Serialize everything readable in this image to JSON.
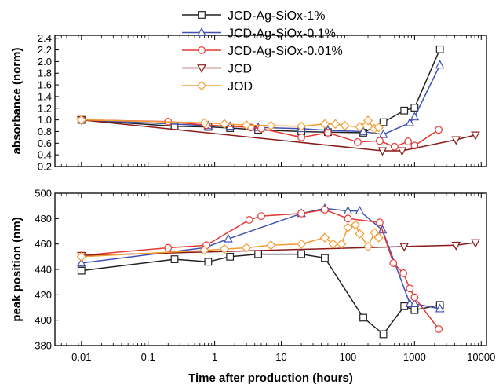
{
  "chart_data": {
    "type": "line",
    "xlabel": "Time after production (hours)",
    "xscale": "log",
    "xlim": [
      0.004,
      12000
    ],
    "xticks": [
      "0.01",
      "0.1",
      "1",
      "10",
      "100",
      "1000",
      "10000"
    ],
    "legend_position": "top-right",
    "series": [
      {
        "name": "JCD-Ag-SiOx-1%",
        "color": "#222222",
        "marker": "square"
      },
      {
        "name": "JCD-Ag-SiOx-0.1%",
        "color": "#3f51b5",
        "marker": "triangle-up"
      },
      {
        "name": "JCD-Ag-SiOx-0.01%",
        "color": "#e53935",
        "marker": "circle"
      },
      {
        "name": "JCD",
        "color": "#8b1a1a",
        "marker": "triangle-down"
      },
      {
        "name": "JOD",
        "color": "#f39c34",
        "marker": "diamond"
      }
    ],
    "panels": [
      {
        "id": "top",
        "ylabel": "absorbance (norm)",
        "ylim": [
          0.2,
          2.45
        ],
        "yticks": [
          0.2,
          0.4,
          0.6,
          0.8,
          1.0,
          1.2,
          1.4,
          1.6,
          1.8,
          2.0,
          2.2,
          2.4
        ],
        "ytick_labels": [
          "0.2",
          "0.4",
          "0.6",
          "0.8",
          "1.0",
          "1.2",
          "1.4",
          "1.6",
          "1.8",
          "2.0",
          "2.2",
          "2.4"
        ],
        "data": [
          {
            "x": [
              0.01,
              0.25,
              0.8,
              1.7,
              4.5,
              20,
              50,
              170,
              340,
              700,
              1000,
              2400
            ],
            "y": [
              1.0,
              0.89,
              0.88,
              0.86,
              0.83,
              0.8,
              0.79,
              0.78,
              0.96,
              1.16,
              1.21,
              2.21
            ]
          },
          {
            "x": [
              0.01,
              0.8,
              1.7,
              4.5,
              20,
              50,
              170,
              340,
              850,
              1000,
              2400
            ],
            "y": [
              1.0,
              0.9,
              0.89,
              0.87,
              0.85,
              0.82,
              0.8,
              0.75,
              0.95,
              1.05,
              1.94
            ]
          },
          {
            "x": [
              0.01,
              0.2,
              0.75,
              3.5,
              5,
              20,
              50,
              140,
              300,
              500,
              800,
              1000,
              2300
            ],
            "y": [
              1.0,
              0.97,
              0.91,
              0.87,
              0.85,
              0.7,
              0.78,
              0.62,
              0.64,
              0.54,
              0.63,
              0.56,
              0.83
            ]
          },
          {
            "x": [
              0.01,
              330,
              650,
              4200,
              8200
            ],
            "y": [
              1.0,
              0.47,
              0.47,
              0.66,
              0.74
            ]
          },
          {
            "x": [
              0.01,
              0.7,
              1.4,
              3,
              7,
              20,
              45,
              65,
              90,
              150,
              200,
              250,
              290
            ],
            "y": [
              1.0,
              0.95,
              0.93,
              0.91,
              0.9,
              0.89,
              0.93,
              0.93,
              0.9,
              0.88,
              0.99,
              0.85,
              0.87
            ]
          }
        ]
      },
      {
        "id": "bottom",
        "ylabel": "peak position (nm)",
        "ylim": [
          380,
          500
        ],
        "yticks": [
          380,
          400,
          420,
          440,
          460,
          480,
          500
        ],
        "ytick_labels": [
          "380",
          "400",
          "420",
          "440",
          "460",
          "480",
          "500"
        ],
        "data": [
          {
            "x": [
              0.01,
              0.25,
              0.8,
              1.7,
              4.5,
              20,
              45,
              170,
              340,
              700,
              1000,
              2400
            ],
            "y": [
              439,
              448,
              446,
              450,
              452,
              452,
              449,
              402,
              389,
              411,
              408,
              412
            ]
          },
          {
            "x": [
              0.01,
              0.7,
              1.6,
              20,
              45,
              100,
              150,
              330,
              850,
              1000,
              2400
            ],
            "y": [
              445,
              457,
              464,
              484,
              488,
              486,
              486,
              471,
              413,
              413,
              409
            ]
          },
          {
            "x": [
              0.01,
              0.2,
              0.75,
              3.3,
              5,
              20,
              45,
              100,
              300,
              480,
              680,
              850,
              1000,
              2300
            ],
            "y": [
              451,
              457,
              459,
              479,
              482,
              484,
              487,
              480,
              477,
              445,
              437,
              425,
              418,
              393
            ]
          },
          {
            "x": [
              0.01,
              700,
              4200,
              8200
            ],
            "y": [
              451,
              458,
              459,
              461
            ]
          },
          {
            "x": [
              0.01,
              0.7,
              1.4,
              3,
              7,
              20,
              45,
              60,
              80,
              100,
              130,
              150,
              200,
              250,
              290
            ],
            "y": [
              450,
              455,
              456,
              457,
              459,
              460,
              465,
              460,
              460,
              473,
              475,
              468,
              458,
              469,
              465
            ]
          }
        ]
      }
    ]
  }
}
